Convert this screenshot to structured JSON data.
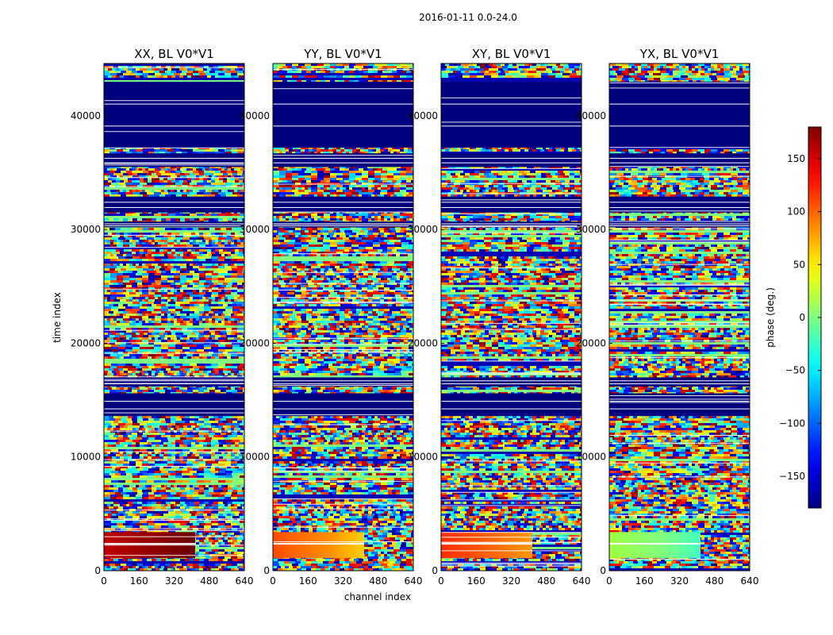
{
  "chart_data": {
    "type": "heatmap",
    "suptitle": "2016-01-11 0.0-24.0",
    "xlabel": "channel index",
    "ylabel": "time index",
    "xlim": [
      0,
      640
    ],
    "ylim": [
      0,
      44600
    ],
    "xticks": [
      0,
      160,
      320,
      480,
      640
    ],
    "yticks": [
      0,
      10000,
      20000,
      30000,
      40000
    ],
    "xtick_labels": [
      "0",
      "160",
      "320",
      "480",
      "640"
    ],
    "ytick_labels": [
      "0",
      "10000",
      "20000",
      "30000",
      "40000"
    ],
    "panels": [
      {
        "title": "XX, BL V0*V1",
        "band_color": "#8b0000",
        "band_start_color": "#c00000",
        "band_end_color": "#6a0000"
      },
      {
        "title": "YY, BL V0*V1",
        "band_color": "#ff8c00",
        "band_start_color": "#ff4a00",
        "band_end_color": "#ffd000"
      },
      {
        "title": "XY, BL V0*V1",
        "band_color": "#ff6a00",
        "band_start_color": "#ff2a00",
        "band_end_color": "#ff9a00"
      },
      {
        "title": "YX, BL V0*V1",
        "band_color": "#7fff7f",
        "band_start_color": "#a0ff40",
        "band_end_color": "#40ffc0"
      }
    ],
    "blank_time_ranges": [
      [
        35500,
        36700
      ],
      [
        37200,
        43000
      ],
      [
        31500,
        32900
      ],
      [
        30200,
        30700
      ],
      [
        16200,
        17000
      ],
      [
        13600,
        15600
      ]
    ],
    "bright_band_time_range": [
      1100,
      3400
    ],
    "colorbar": {
      "label": "phase (deg.)",
      "range": [
        -180,
        180
      ],
      "ticks": [
        150,
        100,
        50,
        0,
        -50,
        -100,
        -150
      ],
      "tick_labels": [
        "150",
        "100",
        "50",
        "0",
        "−50",
        "−100",
        "−150"
      ],
      "cmap": "jet"
    }
  }
}
